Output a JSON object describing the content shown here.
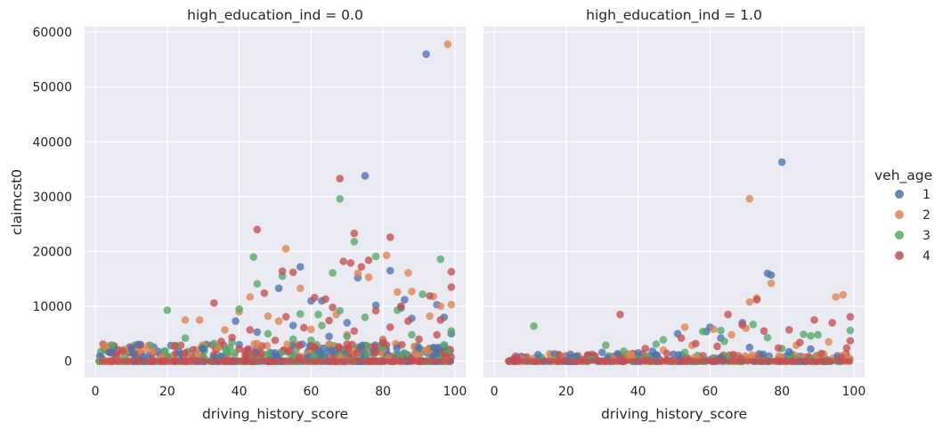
{
  "chart_data": {
    "type": "scatter",
    "xlabel": "driving_history_score",
    "ylabel": "claimcst0",
    "xlim": [
      -3,
      103
    ],
    "ylim": [
      -3000,
      61000
    ],
    "x_ticks": [
      0,
      20,
      40,
      60,
      80,
      100
    ],
    "y_ticks": [
      0,
      10000,
      20000,
      30000,
      40000,
      50000,
      60000
    ],
    "y_tick_labels": [
      "0",
      "10000",
      "20000",
      "30000",
      "40000",
      "50000",
      "60000"
    ],
    "grid": true,
    "legend": {
      "title": "veh_age",
      "placement": "right",
      "entries": [
        {
          "label": "1",
          "color": "#4c72b0"
        },
        {
          "label": "2",
          "color": "#dd8452"
        },
        {
          "label": "3",
          "color": "#55a868"
        },
        {
          "label": "4",
          "color": "#c44e52"
        }
      ]
    },
    "facets": [
      {
        "title": "high_education_ind = 0.0",
        "series": [
          {
            "name": "1",
            "points": [
              [
                92,
                56000
              ],
              [
                75,
                33800
              ],
              [
                57,
                17200
              ],
              [
                73,
                15200
              ],
              [
                82,
                16500
              ],
              [
                85,
                9700
              ],
              [
                86,
                11200
              ],
              [
                39,
                7300
              ],
              [
                51,
                13300
              ],
              [
                60,
                11000
              ],
              [
                63,
                11000
              ],
              [
                78,
                10200
              ],
              [
                95,
                10300
              ],
              [
                97,
                8000
              ],
              [
                88,
                7800
              ],
              [
                70,
                7000
              ],
              [
                45,
                5300
              ],
              [
                55,
                6500
              ],
              [
                30,
                2200
              ],
              [
                40,
                3000
              ],
              [
                65,
                4500
              ],
              [
                80,
                3800
              ],
              [
                99,
                5000
              ],
              [
                90,
                2400
              ],
              [
                50,
                1500
              ],
              [
                35,
                900
              ],
              [
                62,
                1800
              ],
              [
                74,
                2600
              ]
            ]
          },
          {
            "name": "2",
            "points": [
              [
                98,
                57800
              ],
              [
                53,
                20500
              ],
              [
                73,
                16000
              ],
              [
                81,
                19300
              ],
              [
                76,
                15300
              ],
              [
                87,
                16100
              ],
              [
                84,
                12600
              ],
              [
                57,
                13300
              ],
              [
                88,
                12700
              ],
              [
                94,
                11800
              ],
              [
                96,
                10000
              ],
              [
                99,
                10300
              ],
              [
                40,
                9000
              ],
              [
                25,
                7500
              ],
              [
                29,
                7500
              ],
              [
                43,
                11700
              ],
              [
                48,
                8200
              ],
              [
                67,
                8500
              ],
              [
                16,
                1800
              ],
              [
                36,
                5700
              ],
              [
                51,
                7300
              ],
              [
                93,
                8200
              ],
              [
                60,
                5800
              ],
              [
                70,
                4800
              ],
              [
                80,
                4000
              ],
              [
                45,
                3200
              ],
              [
                34,
                2600
              ],
              [
                65,
                3100
              ]
            ]
          },
          {
            "name": "3",
            "points": [
              [
                68,
                29600
              ],
              [
                72,
                21800
              ],
              [
                78,
                19100
              ],
              [
                96,
                18600
              ],
              [
                44,
                19000
              ],
              [
                66,
                16100
              ],
              [
                52,
                15500
              ],
              [
                20,
                9300
              ],
              [
                40,
                9500
              ],
              [
                45,
                14100
              ],
              [
                57,
                8600
              ],
              [
                62,
                8500
              ],
              [
                68,
                9200
              ],
              [
                75,
                8000
              ],
              [
                84,
                9300
              ],
              [
                91,
                12200
              ],
              [
                25,
                4200
              ],
              [
                33,
                3200
              ],
              [
                48,
                5000
              ],
              [
                55,
                4000
              ],
              [
                70,
                4500
              ],
              [
                88,
                4800
              ],
              [
                97,
                3000
              ],
              [
                38,
                3500
              ],
              [
                60,
                3800
              ],
              [
                80,
                2500
              ],
              [
                99,
                5500
              ],
              [
                63,
                6500
              ]
            ]
          },
          {
            "name": "4",
            "points": [
              [
                68,
                33300
              ],
              [
                45,
                24000
              ],
              [
                72,
                23300
              ],
              [
                82,
                22600
              ],
              [
                71,
                17900
              ],
              [
                76,
                18400
              ],
              [
                69,
                18200
              ],
              [
                52,
                16400
              ],
              [
                55,
                16200
              ],
              [
                74,
                17200
              ],
              [
                99,
                16300
              ],
              [
                99,
                13500
              ],
              [
                93,
                11900
              ],
              [
                33,
                10600
              ],
              [
                61,
                11600
              ],
              [
                64,
                11300
              ],
              [
                47,
                12400
              ],
              [
                66,
                9800
              ],
              [
                78,
                9200
              ],
              [
                85,
                10000
              ],
              [
                53,
                8100
              ],
              [
                96,
                7500
              ],
              [
                87,
                7300
              ],
              [
                43,
                5700
              ],
              [
                38,
                4300
              ],
              [
                35,
                3600
              ],
              [
                58,
                6100
              ],
              [
                72,
                5500
              ],
              [
                82,
                6200
              ],
              [
                90,
                4000
              ],
              [
                25,
                1500
              ],
              [
                40,
                2200
              ],
              [
                50,
                3800
              ],
              [
                60,
                2800
              ],
              [
                70,
                3100
              ],
              [
                80,
                3300
              ],
              [
                95,
                4800
              ],
              [
                65,
                7400
              ]
            ]
          }
        ]
      },
      {
        "title": "high_education_ind = 1.0",
        "series": [
          {
            "name": "1",
            "points": [
              [
                80,
                36300
              ],
              [
                76,
                16000
              ],
              [
                77,
                15700
              ],
              [
                69,
                7000
              ],
              [
                60,
                6200
              ],
              [
                59,
                5400
              ],
              [
                51,
                5000
              ],
              [
                63,
                4200
              ],
              [
                23,
                900
              ],
              [
                30,
                1600
              ],
              [
                40,
                1500
              ],
              [
                44,
                1800
              ],
              [
                71,
                2500
              ],
              [
                82,
                1700
              ],
              [
                88,
                2200
              ]
            ]
          },
          {
            "name": "2",
            "points": [
              [
                71,
                29600
              ],
              [
                77,
                14200
              ],
              [
                95,
                11700
              ],
              [
                97,
                12100
              ],
              [
                71,
                10800
              ],
              [
                73,
                11500
              ],
              [
                70,
                6000
              ],
              [
                61,
                5800
              ],
              [
                53,
                6200
              ],
              [
                66,
                4800
              ],
              [
                55,
                2900
              ],
              [
                84,
                2900
              ],
              [
                93,
                3500
              ],
              [
                38,
                1100
              ],
              [
                47,
                2000
              ]
            ]
          },
          {
            "name": "3",
            "points": [
              [
                11,
                6400
              ],
              [
                31,
                2900
              ],
              [
                45,
                3100
              ],
              [
                47,
                3900
              ],
              [
                58,
                5400
              ],
              [
                63,
                5600
              ],
              [
                72,
                6700
              ],
              [
                76,
                4300
              ],
              [
                80,
                2300
              ],
              [
                86,
                4900
              ],
              [
                88,
                4600
              ],
              [
                90,
                4800
              ],
              [
                99,
                5600
              ],
              [
                36,
                1800
              ],
              [
                64,
                3600
              ],
              [
                53,
                1600
              ]
            ]
          },
          {
            "name": "4",
            "points": [
              [
                35,
                8500
              ],
              [
                65,
                8500
              ],
              [
                73,
                11200
              ],
              [
                69,
                6600
              ],
              [
                75,
                5500
              ],
              [
                82,
                5700
              ],
              [
                89,
                7500
              ],
              [
                94,
                7000
              ],
              [
                99,
                8100
              ],
              [
                52,
                4200
              ],
              [
                56,
                3200
              ],
              [
                62,
                2700
              ],
              [
                79,
                2400
              ],
              [
                85,
                3400
              ],
              [
                48,
                1400
              ],
              [
                42,
                2300
              ],
              [
                4,
                0
              ],
              [
                99,
                3700
              ],
              [
                98,
                2400
              ],
              [
                91,
                1400
              ]
            ]
          }
        ]
      }
    ]
  }
}
